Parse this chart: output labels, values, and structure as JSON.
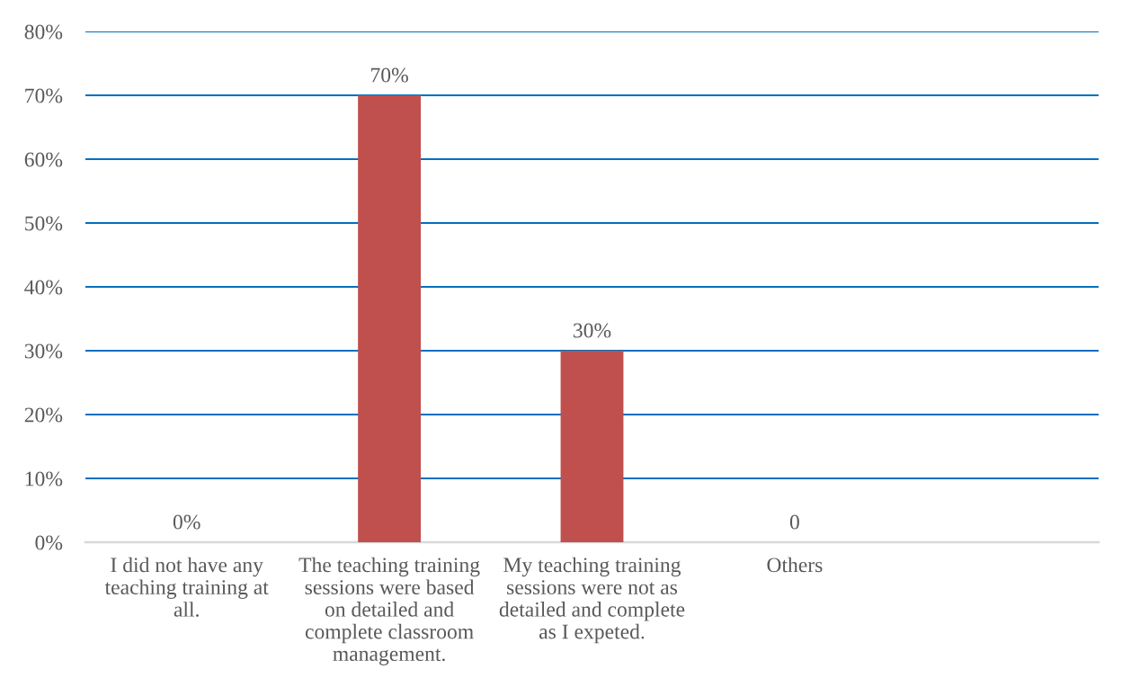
{
  "chart_data": {
    "type": "bar",
    "categories": [
      "I did not have any teaching training at all.",
      "The teaching training sessions were based on detailed and complete classroom management.",
      "My teaching training sessions were not as detailed and complete as I expeted.",
      "Others",
      null
    ],
    "values": [
      0,
      70,
      30,
      0,
      null
    ],
    "color": "#c0504d",
    "value_labels": [
      "0%",
      "70%",
      "30%",
      "0",
      null
    ],
    "ylim": [
      0,
      80
    ],
    "yticks": [
      {
        "value": 0,
        "label": "0%"
      },
      {
        "value": 10,
        "label": "10%"
      },
      {
        "value": 20,
        "label": "20%"
      },
      {
        "value": 30,
        "label": "30%"
      },
      {
        "value": 40,
        "label": "40%"
      },
      {
        "value": 50,
        "label": "50%"
      },
      {
        "value": 60,
        "label": "60%"
      },
      {
        "value": 70,
        "label": "70%"
      },
      {
        "value": 80,
        "label": "80%"
      }
    ],
    "grid": "y"
  }
}
